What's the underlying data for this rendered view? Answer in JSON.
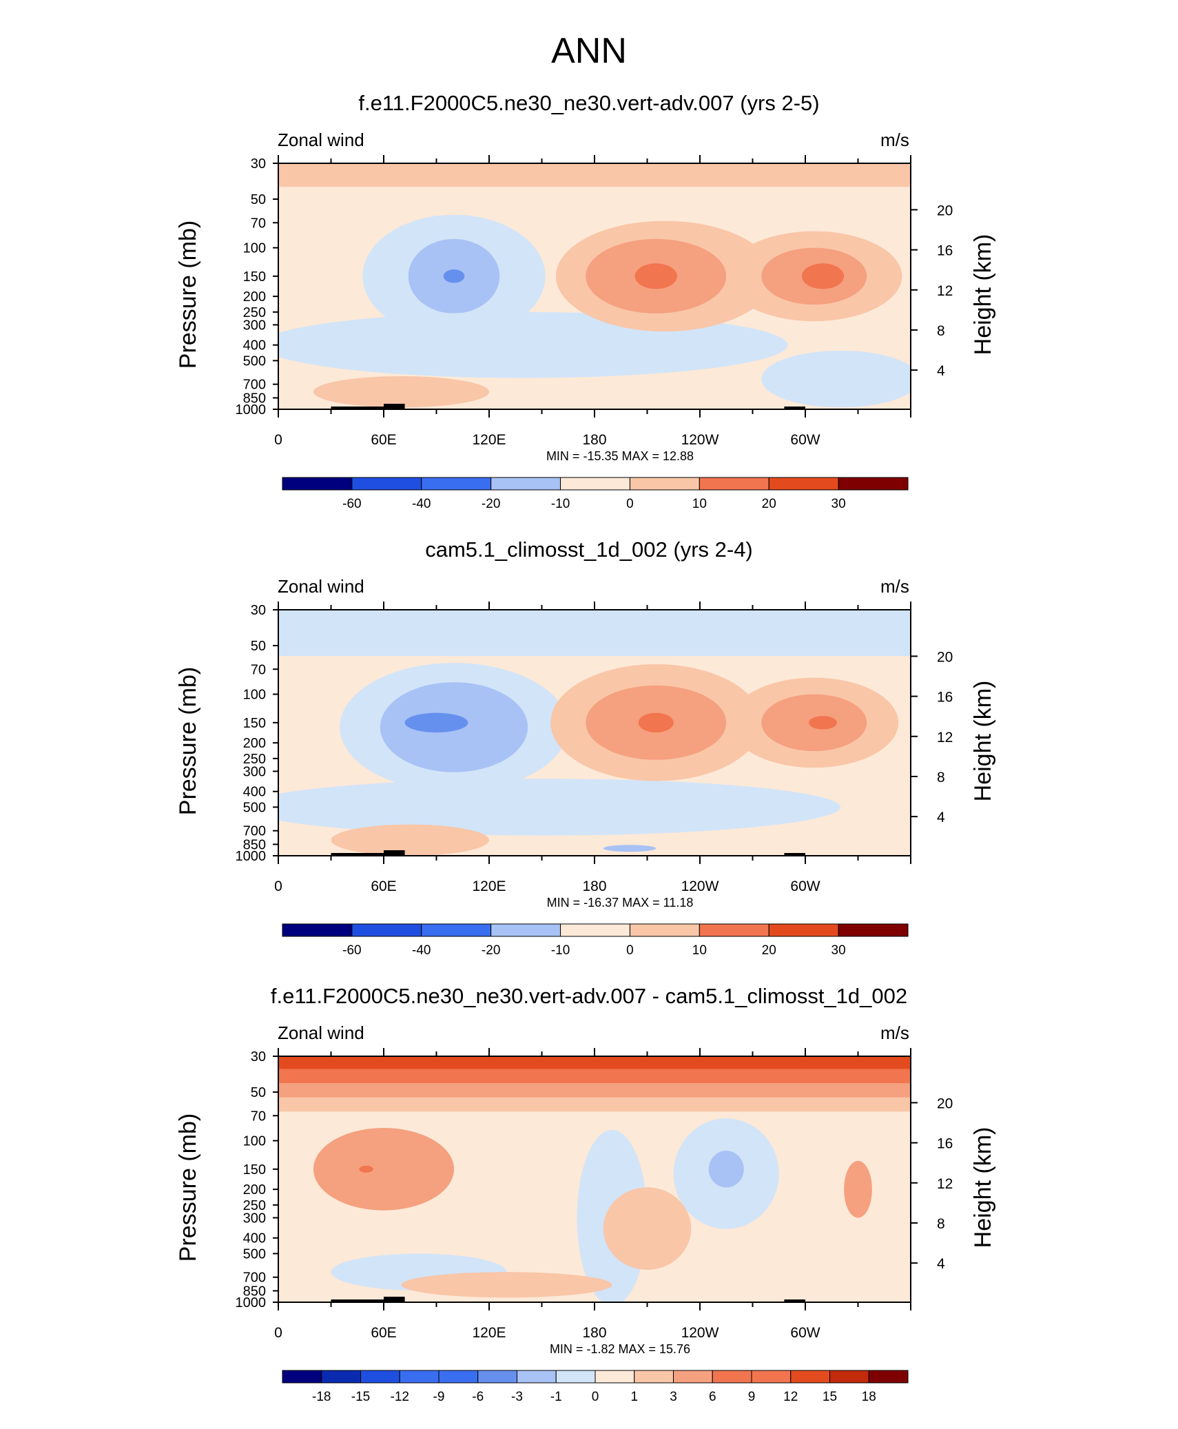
{
  "title": "ANN",
  "colors": {
    "scale": [
      "#00007f",
      "#0a2bb0",
      "#1f4fe0",
      "#3a6ef0",
      "#6690ee",
      "#a8c2f5",
      "#d2e4f8",
      "#fde9d7",
      "#f9c6a8",
      "#f5a07f",
      "#f1754f",
      "#e34b1e",
      "#c22a0c",
      "#7f0000"
    ],
    "topography": "#000000"
  },
  "chart_data": [
    {
      "type": "heatmap",
      "panel_title": "f.e11.F2000C5.ne30_ne30.vert-adv.007 (yrs 2-5)",
      "left_label": "Zonal wind",
      "right_label": "m/s",
      "ylabel": "Pressure (mb)",
      "y2label": "Height (km)",
      "pressure_ticks": [
        "30",
        "50",
        "70",
        "100",
        "150",
        "200",
        "250",
        "300",
        "400",
        "500",
        "700",
        "850",
        "1000"
      ],
      "height_ticks": [
        "20",
        "16",
        "12",
        "8",
        "4"
      ],
      "lon_ticks": [
        "0",
        "60E",
        "120E",
        "180",
        "120W",
        "60W"
      ],
      "min": -15.35,
      "max": 12.88,
      "minmax_text": "MIN = -15.35  MAX =  12.88",
      "colorbar_labels": [
        "-60",
        "-40",
        "-20",
        "-10",
        "0",
        "10",
        "20",
        "30"
      ]
    },
    {
      "type": "heatmap",
      "panel_title": "cam5.1_climosst_1d_002 (yrs 2-4)",
      "left_label": "Zonal wind",
      "right_label": "m/s",
      "ylabel": "Pressure (mb)",
      "y2label": "Height (km)",
      "pressure_ticks": [
        "30",
        "50",
        "70",
        "100",
        "150",
        "200",
        "250",
        "300",
        "400",
        "500",
        "700",
        "850",
        "1000"
      ],
      "height_ticks": [
        "20",
        "16",
        "12",
        "8",
        "4"
      ],
      "lon_ticks": [
        "0",
        "60E",
        "120E",
        "180",
        "120W",
        "60W"
      ],
      "min": -16.37,
      "max": 11.18,
      "minmax_text": "MIN = -16.37  MAX =  11.18",
      "colorbar_labels": [
        "-60",
        "-40",
        "-20",
        "-10",
        "0",
        "10",
        "20",
        "30"
      ]
    },
    {
      "type": "heatmap",
      "panel_title": "f.e11.F2000C5.ne30_ne30.vert-adv.007 - cam5.1_climosst_1d_002",
      "left_label": "Zonal wind",
      "right_label": "m/s",
      "ylabel": "Pressure (mb)",
      "y2label": "Height (km)",
      "pressure_ticks": [
        "30",
        "50",
        "70",
        "100",
        "150",
        "200",
        "250",
        "300",
        "400",
        "500",
        "700",
        "850",
        "1000"
      ],
      "height_ticks": [
        "20",
        "16",
        "12",
        "8",
        "4"
      ],
      "lon_ticks": [
        "0",
        "60E",
        "120E",
        "180",
        "120W",
        "60W"
      ],
      "min": -1.82,
      "max": 15.76,
      "minmax_text": "MIN =  -1.82  MAX =  15.76",
      "colorbar_labels": [
        "-18",
        "-15",
        "-12",
        "-9",
        "-6",
        "-3",
        "-1",
        "0",
        "1",
        "3",
        "6",
        "9",
        "12",
        "15",
        "18"
      ]
    }
  ]
}
